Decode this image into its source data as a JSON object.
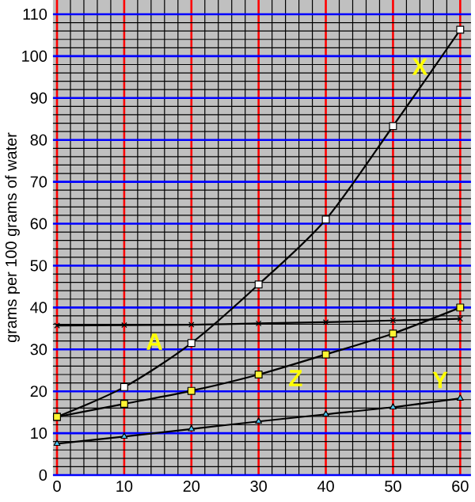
{
  "chart_data": {
    "type": "line",
    "ylabel": "grams per 100 grams of water",
    "x": [
      0,
      10,
      20,
      30,
      40,
      50,
      60
    ],
    "series": [
      {
        "name": "X",
        "color": "#000000",
        "marker": "square",
        "values": [
          13.9,
          21,
          31.5,
          45.5,
          61,
          83.3,
          106.3
        ]
      },
      {
        "name": "A",
        "color": "#000000",
        "marker": "cross",
        "values": [
          35.7,
          35.8,
          35.9,
          36.2,
          36.5,
          36.9,
          37.3
        ]
      },
      {
        "name": "Z",
        "color": "#000000",
        "marker": "square",
        "values": [
          13.9,
          17,
          20.1,
          24,
          28.8,
          33.8,
          40
        ]
      },
      {
        "name": "Y",
        "color": "#000000",
        "marker": "triangle",
        "values": [
          7.5,
          9.2,
          11,
          12.8,
          14.5,
          16.2,
          18.3
        ]
      }
    ],
    "xlim": [
      -0.6,
      61.6
    ],
    "ylim": [
      0,
      113.4
    ],
    "xticks": [
      0,
      10,
      20,
      30,
      40,
      50,
      60
    ],
    "yticks": [
      0,
      10,
      20,
      30,
      40,
      50,
      60,
      70,
      80,
      90,
      100,
      110
    ],
    "grid": true,
    "legend": false
  }
}
